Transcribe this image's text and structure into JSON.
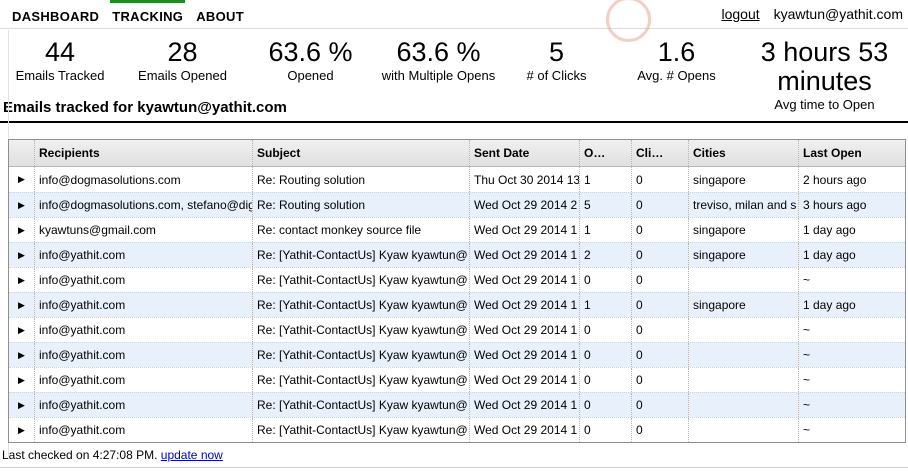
{
  "nav": {
    "items": [
      {
        "label": "DASHBOARD",
        "active": false
      },
      {
        "label": "TRACKING",
        "active": true
      },
      {
        "label": "ABOUT",
        "active": false
      }
    ],
    "logout_label": "logout",
    "user_email": "kyawtun@yathit.com"
  },
  "stats": [
    {
      "value": "44",
      "label": "Emails Tracked"
    },
    {
      "value": "28",
      "label": "Emails Opened"
    },
    {
      "value": "63.6 %",
      "label": "Opened"
    },
    {
      "value": "63.6 %",
      "label": "with Multiple Opens"
    },
    {
      "value": "5",
      "label": "# of Clicks"
    },
    {
      "value": "1.6",
      "label": "Avg. # Opens"
    },
    {
      "value": "3 hours 53 minutes",
      "label": "Avg time to Open"
    }
  ],
  "section_title": "Emails tracked for kyawtun@yathit.com",
  "table": {
    "expander_glyph": "▶",
    "columns": [
      "",
      "Recipients",
      "Subject",
      "Sent Date",
      "O…",
      "Cli…",
      "Cities",
      "Last Open"
    ],
    "rows": [
      {
        "recipients": "info@dogmasolutions.com",
        "subject": "Re: Routing solution",
        "sent_date": "Thu Oct 30 2014 13",
        "opens": "1",
        "clicks": "0",
        "cities": "singapore",
        "last_open": "2 hours ago"
      },
      {
        "recipients": "info@dogmasolutions.com, stefano@dig",
        "subject": "Re: Routing solution",
        "sent_date": "Wed Oct 29 2014 2",
        "opens": "5",
        "clicks": "0",
        "cities": "treviso, milan and s",
        "last_open": "3 hours ago"
      },
      {
        "recipients": "kyawtuns@gmail.com",
        "subject": "Re: contact monkey source file",
        "sent_date": "Wed Oct 29 2014 1",
        "opens": "1",
        "clicks": "0",
        "cities": "singapore",
        "last_open": "1 day ago"
      },
      {
        "recipients": "info@yathit.com",
        "subject": "Re: [Yathit-ContactUs] Kyaw kyawtun@",
        "sent_date": "Wed Oct 29 2014 1",
        "opens": "2",
        "clicks": "0",
        "cities": "singapore",
        "last_open": "1 day ago"
      },
      {
        "recipients": "info@yathit.com",
        "subject": "Re: [Yathit-ContactUs] Kyaw kyawtun@",
        "sent_date": "Wed Oct 29 2014 1",
        "opens": "0",
        "clicks": "0",
        "cities": "",
        "last_open": "~"
      },
      {
        "recipients": "info@yathit.com",
        "subject": "Re: [Yathit-ContactUs] Kyaw kyawtun@",
        "sent_date": "Wed Oct 29 2014 1",
        "opens": "1",
        "clicks": "0",
        "cities": "singapore",
        "last_open": "1 day ago"
      },
      {
        "recipients": "info@yathit.com",
        "subject": "Re: [Yathit-ContactUs] Kyaw kyawtun@",
        "sent_date": "Wed Oct 29 2014 1",
        "opens": "0",
        "clicks": "0",
        "cities": "",
        "last_open": "~"
      },
      {
        "recipients": "info@yathit.com",
        "subject": "Re: [Yathit-ContactUs] Kyaw kyawtun@",
        "sent_date": "Wed Oct 29 2014 1",
        "opens": "0",
        "clicks": "0",
        "cities": "",
        "last_open": "~"
      },
      {
        "recipients": "info@yathit.com",
        "subject": "Re: [Yathit-ContactUs] Kyaw kyawtun@",
        "sent_date": "Wed Oct 29 2014 1",
        "opens": "0",
        "clicks": "0",
        "cities": "",
        "last_open": "~"
      },
      {
        "recipients": "info@yathit.com",
        "subject": "Re: [Yathit-ContactUs] Kyaw kyawtun@",
        "sent_date": "Wed Oct 29 2014 1",
        "opens": "0",
        "clicks": "0",
        "cities": "",
        "last_open": "~"
      },
      {
        "recipients": "info@yathit.com",
        "subject": "Re: [Yathit-ContactUs] Kyaw kyawtun@",
        "sent_date": "Wed Oct 29 2014 1",
        "opens": "0",
        "clicks": "0",
        "cities": "",
        "last_open": "~"
      }
    ]
  },
  "footer": {
    "text": "Last checked on 4:27:08 PM.",
    "link_label": "update now"
  },
  "colors": {
    "accent_green": "#1e8c1e",
    "row_alt": "#e8f1fb",
    "link_blue": "#0000cc",
    "annotation_circle": "#e8a692"
  }
}
